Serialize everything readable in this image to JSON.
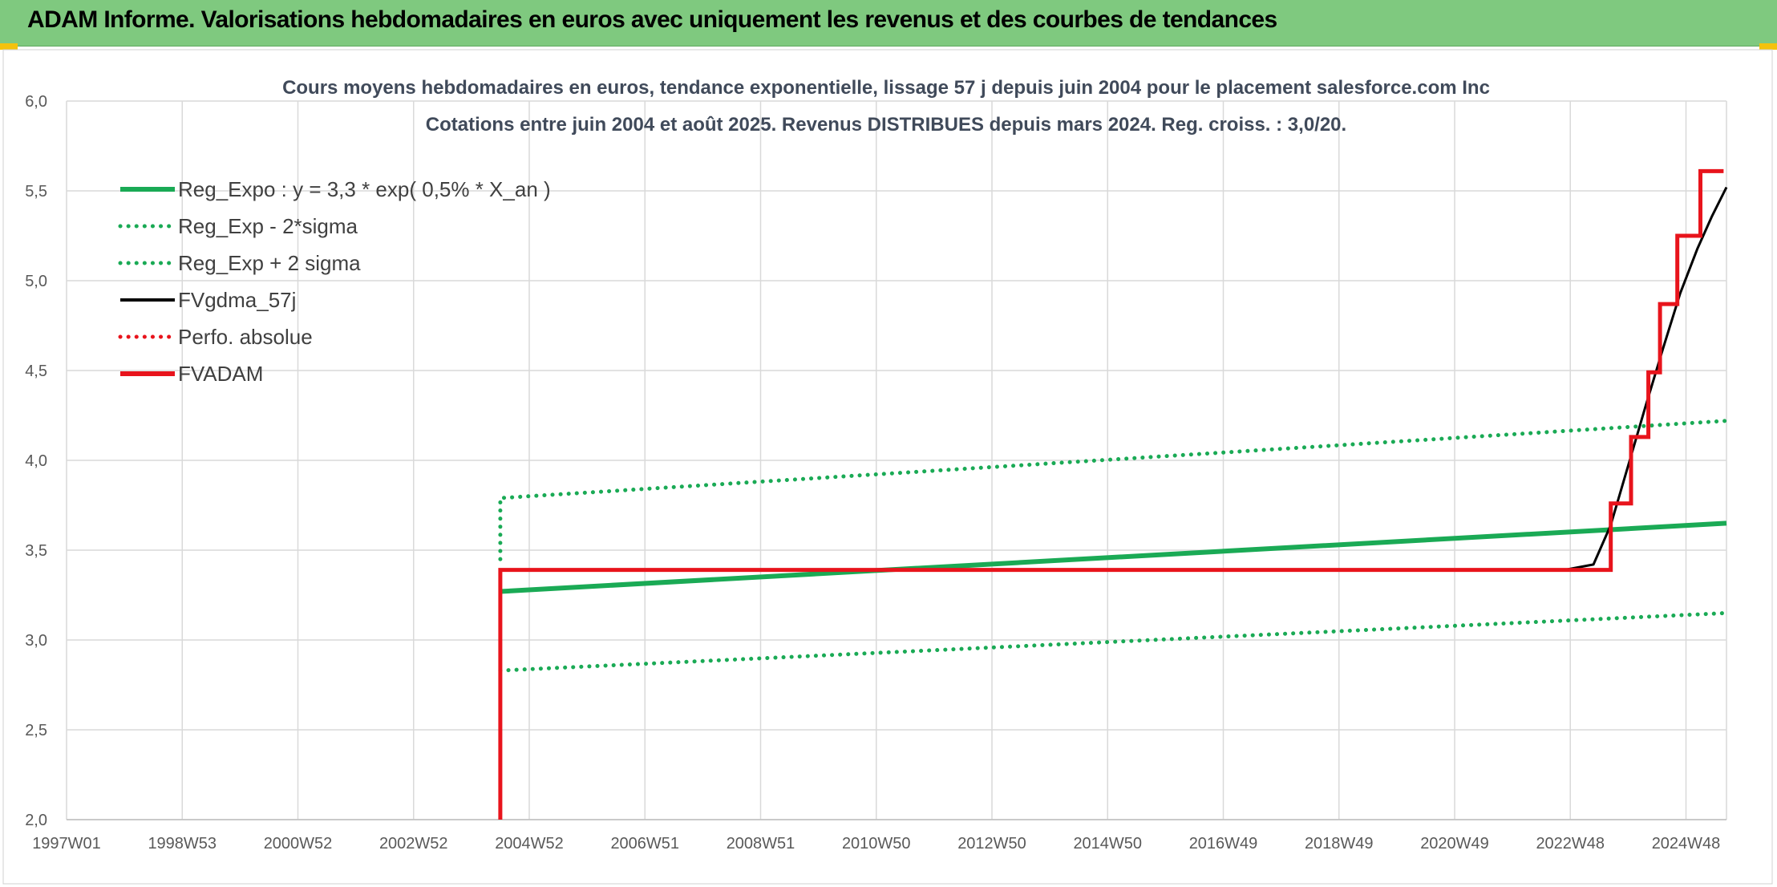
{
  "header": {
    "title": "ADAM Informe. Valorisations hebdomadaires en euros avec uniquement les revenus et des courbes de tendances",
    "background": "#7fc97f"
  },
  "colors": {
    "green": "#1aaa55",
    "red": "#e8141c",
    "black": "#000000",
    "grid": "#d9d9d9",
    "title": "#404a5a"
  },
  "chart_data": {
    "type": "line",
    "title": "Cours moyens hebdomadaires en euros, tendance exponentielle, lissage 57 j depuis juin 2004 pour le placement salesforce.com Inc",
    "subtitle": "Cotations entre juin 2004 et août 2025. Revenus DISTRIBUES depuis mars 2024. Reg. croiss. : 3,0/20.",
    "xlabel": "",
    "ylabel": "",
    "x_ticks": [
      "1997W01",
      "1998W53",
      "2000W52",
      "2002W52",
      "2004W52",
      "2006W51",
      "2008W51",
      "2010W50",
      "2012W50",
      "2014W50",
      "2016W49",
      "2018W49",
      "2020W49",
      "2022W48",
      "2024W48"
    ],
    "x_tick_years": [
      1997.0,
      1999.0,
      2001.0,
      2003.0,
      2005.0,
      2007.0,
      2009.0,
      2011.0,
      2013.0,
      2015.0,
      2017.0,
      2019.0,
      2021.0,
      2023.0,
      2025.0
    ],
    "xlim": [
      1997.0,
      2025.7
    ],
    "ylim": [
      2.0,
      6.0
    ],
    "y_ticks": [
      "2,0",
      "2,5",
      "3,0",
      "3,5",
      "4,0",
      "4,5",
      "5,0",
      "5,5",
      "6,0"
    ],
    "y_tick_values": [
      2.0,
      2.5,
      3.0,
      3.5,
      4.0,
      4.5,
      5.0,
      5.5,
      6.0
    ],
    "grid": true,
    "legend_position": "top-left",
    "series": [
      {
        "name": "Reg_Expo : y = 3,3 * exp( 0,5% *  X_an )",
        "color": "#1aaa55",
        "style": "solid",
        "x": [
          2004.5,
          2025.7
        ],
        "y": [
          3.27,
          3.65
        ]
      },
      {
        "name": "Reg_Exp - 2*sigma",
        "color": "#1aaa55",
        "style": "dotted",
        "x": [
          2004.5,
          2025.7
        ],
        "y": [
          2.83,
          3.15
        ]
      },
      {
        "name": "Reg_Exp + 2 sigma",
        "color": "#1aaa55",
        "style": "dotted",
        "x": [
          2004.5,
          2004.5,
          2025.7
        ],
        "y": [
          3.45,
          3.79,
          4.22
        ]
      },
      {
        "name": "FVgdma_57j",
        "color": "#000000",
        "style": "solid",
        "x": [
          2022.9,
          2023.4,
          2023.7,
          2024.0,
          2024.3,
          2024.6,
          2024.9,
          2025.2,
          2025.45,
          2025.7
        ],
        "y": [
          3.39,
          3.42,
          3.64,
          3.97,
          4.3,
          4.62,
          4.93,
          5.18,
          5.36,
          5.52
        ]
      },
      {
        "name": "Perfo. absolue",
        "color": "#e8141c",
        "style": "dotted",
        "x": [],
        "y": []
      },
      {
        "name": "FVADAM",
        "color": "#e8141c",
        "style": "step",
        "x": [
          2004.5,
          2004.5,
          2023.7,
          2023.7,
          2024.05,
          2024.05,
          2024.35,
          2024.35,
          2024.55,
          2024.55,
          2024.85,
          2024.85,
          2025.25,
          2025.25,
          2025.5,
          2025.5,
          2025.65
        ],
        "y": [
          2.0,
          3.39,
          3.39,
          3.76,
          3.76,
          4.13,
          4.13,
          4.49,
          4.49,
          4.87,
          4.87,
          5.25,
          5.25,
          5.61,
          5.61,
          5.61,
          5.61
        ]
      }
    ]
  }
}
